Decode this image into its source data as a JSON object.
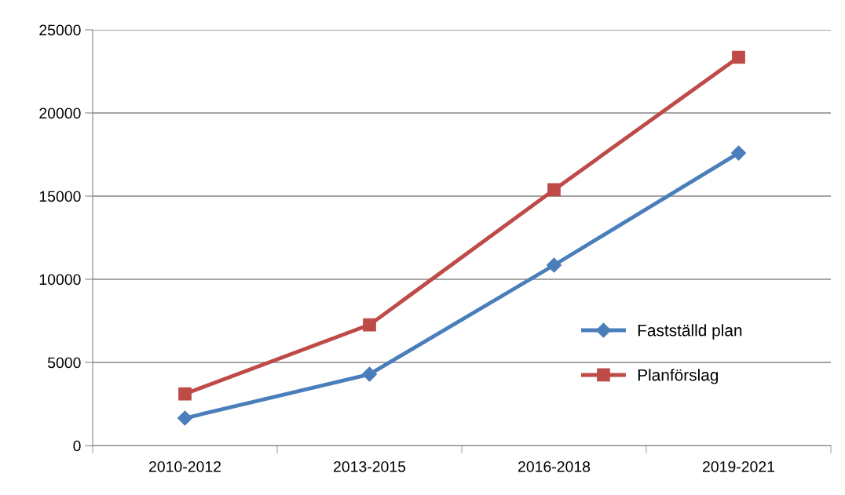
{
  "chart_data": {
    "type": "line",
    "categories": [
      "2010-2012",
      "2013-2015",
      "2016-2018",
      "2019-2021"
    ],
    "series": [
      {
        "name": "Fastställd plan",
        "color": "#4a7ebb",
        "marker": "diamond",
        "values": [
          1650,
          4290,
          10850,
          17590
        ]
      },
      {
        "name": "Planförslag",
        "color": "#be4b48",
        "marker": "square",
        "values": [
          3110,
          7260,
          15380,
          23350
        ]
      }
    ],
    "ylim": [
      0,
      25000
    ],
    "yticks": [
      0,
      5000,
      10000,
      15000,
      20000,
      25000
    ],
    "grid": "y",
    "legend": "right",
    "line_style": "solid"
  }
}
